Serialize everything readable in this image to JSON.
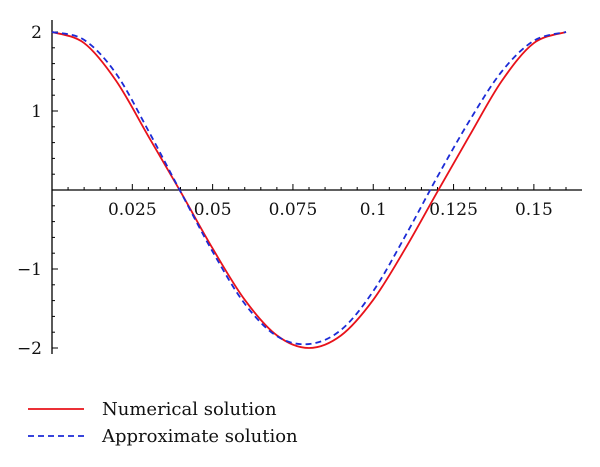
{
  "chart_data": {
    "type": "line",
    "title": "",
    "xlabel": "",
    "ylabel": "",
    "xlim": [
      0,
      0.16
    ],
    "ylim": [
      -2,
      2
    ],
    "x_ticks": [
      {
        "value": 0.025,
        "label": "0.025"
      },
      {
        "value": 0.05,
        "label": "0.05"
      },
      {
        "value": 0.075,
        "label": "0.075"
      },
      {
        "value": 0.1,
        "label": "0.1"
      },
      {
        "value": 0.125,
        "label": "0.125"
      },
      {
        "value": 0.15,
        "label": "0.15"
      }
    ],
    "y_ticks": [
      {
        "value": 2,
        "label": "2"
      },
      {
        "value": 1,
        "label": "1"
      },
      {
        "value": -1,
        "label": "−1"
      },
      {
        "value": -2,
        "label": "−2"
      }
    ],
    "grid": false,
    "legend_position": "bottom-left",
    "series": [
      {
        "name": "Numerical solution",
        "color": "#e8121a",
        "dash": "solid",
        "x": [
          0,
          0.01,
          0.02,
          0.03,
          0.04,
          0.05,
          0.06,
          0.07,
          0.08,
          0.09,
          0.1,
          0.11,
          0.12,
          0.13,
          0.14,
          0.15,
          0.16
        ],
        "y": [
          2.0,
          1.86,
          1.38,
          0.68,
          -0.02,
          -0.74,
          -1.39,
          -1.84,
          -2.0,
          -1.84,
          -1.39,
          -0.74,
          -0.02,
          0.69,
          1.38,
          1.86,
          2.0
        ]
      },
      {
        "name": "Approximate solution",
        "color": "#1c2bd6",
        "dash": "dashed",
        "x": [
          0,
          0.01,
          0.02,
          0.03,
          0.04,
          0.05,
          0.06,
          0.07,
          0.08,
          0.09,
          0.1,
          0.11,
          0.12,
          0.13,
          0.14,
          0.15,
          0.16
        ],
        "y": [
          2.0,
          1.9,
          1.47,
          0.75,
          -0.02,
          -0.78,
          -1.44,
          -1.85,
          -1.95,
          -1.77,
          -1.28,
          -0.58,
          0.17,
          0.88,
          1.5,
          1.89,
          2.0
        ]
      }
    ]
  }
}
